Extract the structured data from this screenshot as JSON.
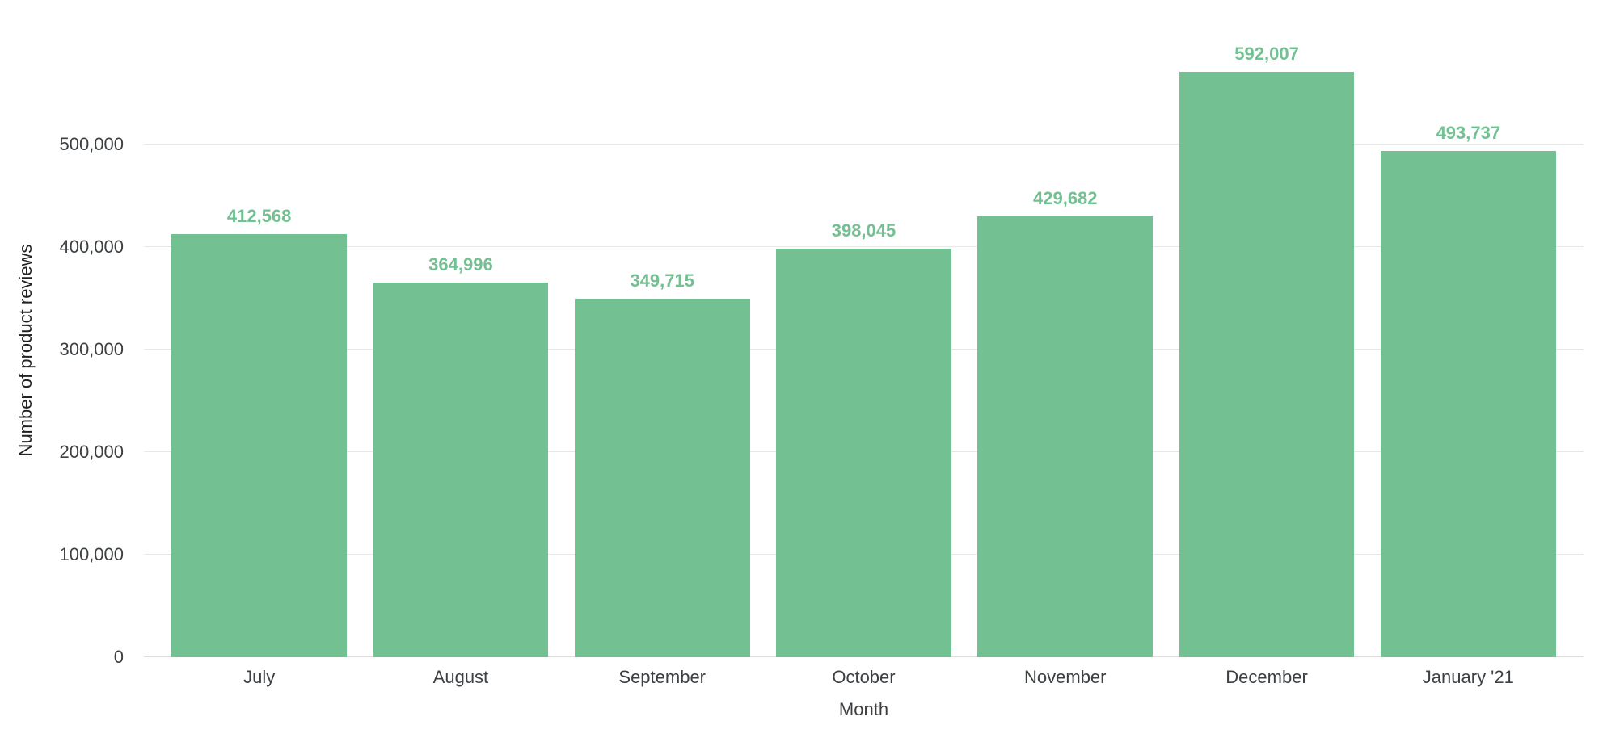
{
  "chart_data": {
    "type": "bar",
    "title": "",
    "xlabel": "Month",
    "ylabel": "Number of product reviews",
    "categories": [
      "July",
      "August",
      "September",
      "October",
      "November",
      "December",
      "January '21"
    ],
    "values": [
      412568,
      364996,
      349715,
      398045,
      429682,
      592007,
      493737
    ],
    "value_labels": [
      "412,568",
      "364,996",
      "349,715",
      "398,045",
      "429,682",
      "592,007",
      "493,737"
    ],
    "yticks": [
      0,
      100000,
      200000,
      300000,
      400000,
      500000
    ],
    "ytick_labels": [
      "0",
      "100,000",
      "200,000",
      "300,000",
      "400,000",
      "500,000"
    ],
    "ylim": [
      0,
      600000
    ],
    "grid": true,
    "legend": "none",
    "bar_color": "#73c093",
    "value_label_color": "#73c093",
    "gridline_color": "#e7e7e7",
    "axis_text_color": "#3c4043"
  }
}
